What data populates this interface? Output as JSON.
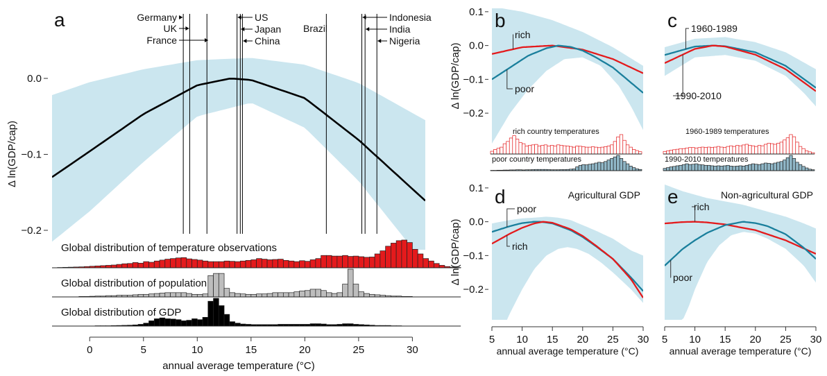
{
  "chart_data": [
    {
      "panel": "a",
      "type": "line",
      "xlabel": "annual average temperature (°C)",
      "ylabel": "Δ ln(GDP/cap)",
      "xlim": [
        -3.5,
        31.2
      ],
      "ylim": [
        -0.22,
        0.075
      ],
      "xticks": [
        0,
        5,
        10,
        15,
        20,
        25,
        30
      ],
      "xtick_labels": [
        "0",
        "5",
        "10",
        "15",
        "20",
        "25",
        "30"
      ],
      "yticks": [
        0.0,
        -0.1,
        -0.2
      ],
      "ytick_labels": [
        "0.0",
        "−0.1",
        "−0.2"
      ],
      "curve": {
        "x": [
          -3.5,
          0,
          5,
          10,
          13.1,
          15,
          20,
          25,
          31.2
        ],
        "y": [
          -0.13,
          -0.096,
          -0.047,
          -0.009,
          0.0,
          -0.002,
          -0.026,
          -0.081,
          -0.161
        ]
      },
      "band_upper": {
        "x": [
          -3.5,
          0,
          5,
          10,
          15,
          20,
          25,
          31.2
        ],
        "y": [
          -0.022,
          -0.005,
          0.012,
          0.024,
          0.027,
          0.018,
          -0.006,
          -0.055
        ]
      },
      "band_lower": {
        "x": [
          -3.5,
          0,
          5,
          10,
          15,
          20,
          25,
          31.2
        ],
        "y": [
          -0.215,
          -0.175,
          -0.11,
          -0.05,
          -0.032,
          -0.065,
          -0.135,
          -0.245
        ]
      },
      "countries": [
        {
          "name": "Germany",
          "temp": 8.7
        },
        {
          "name": "UK",
          "temp": 9.3
        },
        {
          "name": "France",
          "temp": 10.9
        },
        {
          "name": "US",
          "temp": 13.7
        },
        {
          "name": "Japan",
          "temp": 14.0
        },
        {
          "name": "China",
          "temp": 14.2
        },
        {
          "name": "Brazil",
          "temp": 22.0
        },
        {
          "name": "Indonesia",
          "temp": 25.3
        },
        {
          "name": "India",
          "temp": 25.6
        },
        {
          "name": "Nigeria",
          "temp": 26.7
        }
      ],
      "histograms": [
        {
          "name": "Global distribution of temperature observations",
          "color": "#e41a1c",
          "values": [
            0.005,
            0.01,
            0.015,
            0.02,
            0.025,
            0.03,
            0.04,
            0.05,
            0.06,
            0.07,
            0.08,
            0.09,
            0.11,
            0.13,
            0.14,
            0.17,
            0.15,
            0.2,
            0.18,
            0.22,
            0.25,
            0.28,
            0.3,
            0.32,
            0.33,
            0.29,
            0.27,
            0.25,
            0.22,
            0.2,
            0.2,
            0.2,
            0.22,
            0.21,
            0.2,
            0.22,
            0.24,
            0.26,
            0.3,
            0.28,
            0.26,
            0.27,
            0.28,
            0.24,
            0.22,
            0.2,
            0.23,
            0.21,
            0.26,
            0.3,
            0.4,
            0.4,
            0.38,
            0.38,
            0.4,
            0.37,
            0.38,
            0.36,
            0.34,
            0.35,
            0.45,
            0.55,
            0.7,
            0.8,
            0.88,
            0.9,
            0.82,
            0.6,
            0.45,
            0.3,
            0.22,
            0.14,
            0.08,
            0.04,
            0.02,
            0.01
          ]
        },
        {
          "name": "Global distribution of population",
          "color": "#bdbdbd",
          "values": [
            0.0,
            0.0,
            0.0,
            0.005,
            0.005,
            0.01,
            0.01,
            0.015,
            0.02,
            0.02,
            0.03,
            0.03,
            0.04,
            0.04,
            0.04,
            0.05,
            0.06,
            0.06,
            0.07,
            0.08,
            0.09,
            0.1,
            0.1,
            0.1,
            0.1,
            0.08,
            0.06,
            0.06,
            0.07,
            0.5,
            0.55,
            0.55,
            0.2,
            0.1,
            0.08,
            0.07,
            0.06,
            0.06,
            0.07,
            0.07,
            0.08,
            0.1,
            0.1,
            0.1,
            0.1,
            0.12,
            0.14,
            0.15,
            0.18,
            0.18,
            0.15,
            0.1,
            0.08,
            0.1,
            0.3,
            0.65,
            0.3,
            0.12,
            0.08,
            0.06,
            0.05,
            0.04,
            0.03,
            0.02,
            0.02,
            0.01,
            0.01,
            0.0,
            0.0,
            0.0,
            0.0,
            0.0,
            0.0,
            0.0,
            0.0,
            0.0
          ]
        },
        {
          "name": "Global distribution of GDP",
          "color": "#000000",
          "values": [
            0.0,
            0.0,
            0.0,
            0.0,
            0.0,
            0.005,
            0.005,
            0.005,
            0.01,
            0.01,
            0.01,
            0.015,
            0.02,
            0.025,
            0.03,
            0.04,
            0.06,
            0.1,
            0.18,
            0.25,
            0.28,
            0.25,
            0.24,
            0.22,
            0.18,
            0.2,
            0.25,
            0.22,
            0.3,
            0.85,
            0.95,
            0.7,
            0.4,
            0.15,
            0.1,
            0.07,
            0.06,
            0.05,
            0.05,
            0.05,
            0.05,
            0.05,
            0.06,
            0.06,
            0.06,
            0.06,
            0.06,
            0.06,
            0.08,
            0.08,
            0.07,
            0.05,
            0.05,
            0.06,
            0.08,
            0.08,
            0.06,
            0.05,
            0.04,
            0.03,
            0.02,
            0.02,
            0.02,
            0.01,
            0.01,
            0.005,
            0.005,
            0.0,
            0.0,
            0.0,
            0.0,
            0.0,
            0.0,
            0.0,
            0.0,
            0.0
          ]
        }
      ],
      "hist_x_start": -3.5,
      "hist_bin_width": 0.5
    },
    {
      "panel": "b",
      "type": "line",
      "ylabel": "Δ ln(GDP/cap)",
      "xlim": [
        5,
        30
      ],
      "ylim": [
        -0.29,
        0.11
      ],
      "yticks": [
        0.1,
        0.0,
        -0.1,
        -0.2
      ],
      "ytick_labels": [
        "0.1",
        "0.0",
        "−0.1",
        "−0.2"
      ],
      "series": [
        {
          "name": "rich",
          "color": "#e41a1c",
          "x": [
            5,
            10,
            15,
            20,
            25,
            30
          ],
          "y": [
            -0.025,
            -0.005,
            0.0,
            -0.012,
            -0.04,
            -0.082
          ]
        },
        {
          "name": "poor",
          "color": "#1a7f9c",
          "x": [
            5,
            8,
            11,
            14,
            16,
            18,
            20,
            22,
            25,
            28,
            30
          ],
          "y": [
            -0.1,
            -0.065,
            -0.03,
            -0.008,
            0.0,
            -0.004,
            -0.015,
            -0.033,
            -0.065,
            -0.11,
            -0.14
          ]
        }
      ],
      "band_upper": {
        "x": [
          5,
          10,
          15,
          20,
          25,
          30
        ],
        "y": [
          0.115,
          0.1,
          0.075,
          0.04,
          -0.005,
          -0.06
        ]
      },
      "band_lower": {
        "x": [
          5,
          8,
          11,
          14,
          17,
          20,
          23,
          26,
          28,
          30
        ],
        "y": [
          -0.29,
          -0.2,
          -0.13,
          -0.075,
          -0.04,
          -0.035,
          -0.06,
          -0.12,
          -0.18,
          -0.25
        ]
      },
      "histograms": [
        {
          "name": "rich country temperatures",
          "color": "#e41a1c",
          "fill": "#ffffff",
          "values": [
            0.12,
            0.2,
            0.25,
            0.3,
            0.45,
            0.55,
            0.7,
            0.8,
            0.65,
            0.5,
            0.45,
            0.35,
            0.38,
            0.4,
            0.42,
            0.35,
            0.38,
            0.4,
            0.35,
            0.38,
            0.35,
            0.4,
            0.38,
            0.36,
            0.35,
            0.33,
            0.3,
            0.35,
            0.34,
            0.32,
            0.3,
            0.3,
            0.32,
            0.3,
            0.28,
            0.3,
            0.32,
            0.35,
            0.4,
            0.55,
            0.75,
            0.85,
            0.6,
            0.4,
            0.3,
            0.2,
            0.15,
            0.1
          ]
        },
        {
          "name": "poor country temperatures",
          "color": "#222222",
          "fill": "#8fb6c6",
          "values": [
            0.02,
            0.02,
            0.03,
            0.03,
            0.04,
            0.04,
            0.05,
            0.05,
            0.06,
            0.06,
            0.05,
            0.06,
            0.06,
            0.07,
            0.08,
            0.08,
            0.08,
            0.08,
            0.07,
            0.06,
            0.06,
            0.06,
            0.07,
            0.07,
            0.08,
            0.1,
            0.12,
            0.25,
            0.35,
            0.4,
            0.38,
            0.42,
            0.45,
            0.5,
            0.55,
            0.52,
            0.6,
            0.7,
            0.8,
            0.9,
            1.0,
            0.8,
            0.6,
            0.45,
            0.3,
            0.2,
            0.12,
            0.08
          ]
        }
      ]
    },
    {
      "panel": "c",
      "type": "line",
      "xlim": [
        5,
        30
      ],
      "ylim": [
        -0.29,
        0.11
      ],
      "series": [
        {
          "name": "1960-1989",
          "color": "#1a7f9c",
          "x": [
            5,
            10,
            13,
            15,
            20,
            25,
            30
          ],
          "y": [
            -0.028,
            -0.003,
            0.0,
            -0.002,
            -0.02,
            -0.06,
            -0.125
          ]
        },
        {
          "name": "1990-2010",
          "color": "#e41a1c",
          "x": [
            5,
            10,
            13,
            15,
            20,
            25,
            30
          ],
          "y": [
            -0.052,
            -0.01,
            0.0,
            -0.003,
            -0.027,
            -0.07,
            -0.135
          ]
        }
      ],
      "band_upper": {
        "x": [
          5,
          10,
          15,
          20,
          25,
          30
        ],
        "y": [
          -0.005,
          0.02,
          0.025,
          0.01,
          -0.02,
          -0.07
        ]
      },
      "band_lower": {
        "x": [
          5,
          10,
          15,
          20,
          25,
          28,
          30
        ],
        "y": [
          -0.09,
          -0.035,
          -0.028,
          -0.045,
          -0.09,
          -0.14,
          -0.18
        ]
      },
      "histograms": [
        {
          "name": "1960-1989 temperatures",
          "color": "#e41a1c",
          "fill": "#ffffff",
          "values": [
            0.12,
            0.15,
            0.18,
            0.2,
            0.22,
            0.25,
            0.25,
            0.28,
            0.3,
            0.3,
            0.28,
            0.3,
            0.32,
            0.3,
            0.32,
            0.3,
            0.32,
            0.35,
            0.32,
            0.3,
            0.35,
            0.38,
            0.35,
            0.4,
            0.38,
            0.42,
            0.45,
            0.4,
            0.38,
            0.35,
            0.4,
            0.38,
            0.45,
            0.5,
            0.48,
            0.45,
            0.5,
            0.55,
            0.65,
            0.75,
            0.9,
            0.8,
            0.55,
            0.35,
            0.25,
            0.15,
            0.1,
            0.06
          ]
        },
        {
          "name": "1990-2010 temperatures",
          "color": "#222222",
          "fill": "#8fb6c6",
          "values": [
            0.15,
            0.2,
            0.25,
            0.28,
            0.32,
            0.35,
            0.4,
            0.45,
            0.4,
            0.42,
            0.45,
            0.4,
            0.38,
            0.35,
            0.35,
            0.32,
            0.3,
            0.32,
            0.3,
            0.32,
            0.35,
            0.3,
            0.28,
            0.3,
            0.32,
            0.3,
            0.35,
            0.4,
            0.45,
            0.42,
            0.4,
            0.45,
            0.5,
            0.48,
            0.45,
            0.5,
            0.55,
            0.6,
            0.7,
            0.85,
            1.0,
            0.8,
            0.55,
            0.4,
            0.28,
            0.18,
            0.1,
            0.06
          ]
        }
      ]
    },
    {
      "panel": "d",
      "type": "line",
      "title": "Agricultural GDP",
      "xlabel": "annual average temperature (°C)",
      "ylabel": "Δ ln(GDP/cap)",
      "xlim": [
        5,
        30
      ],
      "ylim": [
        -0.29,
        0.11
      ],
      "xticks": [
        5,
        10,
        15,
        20,
        25,
        30
      ],
      "xtick_labels": [
        "5",
        "10",
        "15",
        "20",
        "25",
        "30"
      ],
      "yticks": [
        0.1,
        0.0,
        -0.1,
        -0.2
      ],
      "ytick_labels": [
        "0.1",
        "0.0",
        "−0.1",
        "−0.2"
      ],
      "series": [
        {
          "name": "poor",
          "color": "#1a7f9c",
          "x": [
            5,
            8,
            10,
            12,
            13,
            15,
            18,
            20,
            22,
            25,
            28,
            30
          ],
          "y": [
            -0.03,
            -0.013,
            -0.004,
            0.0,
            0.0,
            -0.005,
            -0.025,
            -0.045,
            -0.07,
            -0.11,
            -0.165,
            -0.205
          ]
        },
        {
          "name": "rich",
          "color": "#e41a1c",
          "x": [
            5,
            8,
            10,
            12,
            13.5,
            15,
            18,
            20,
            22,
            25,
            28,
            30
          ],
          "y": [
            -0.065,
            -0.035,
            -0.018,
            -0.005,
            0.0,
            -0.003,
            -0.022,
            -0.042,
            -0.068,
            -0.11,
            -0.17,
            -0.225
          ]
        }
      ],
      "band_upper": {
        "x": [
          5,
          8,
          10,
          12,
          14,
          16,
          18,
          20,
          22,
          25,
          28,
          30
        ],
        "y": [
          -0.005,
          0.005,
          0.01,
          0.012,
          0.015,
          0.012,
          0.005,
          -0.01,
          -0.025,
          -0.05,
          -0.085,
          -0.1
        ]
      },
      "band_lower": {
        "x": [
          5,
          7.5,
          8,
          10,
          12,
          14,
          16,
          17.5,
          19,
          21,
          23,
          25,
          28,
          30
        ],
        "y": [
          -0.29,
          -0.29,
          -0.27,
          -0.2,
          -0.14,
          -0.1,
          -0.08,
          -0.075,
          -0.08,
          -0.095,
          -0.12,
          -0.15,
          -0.2,
          -0.24
        ]
      }
    },
    {
      "panel": "e",
      "type": "line",
      "title": "Non-agricultural GDP",
      "xlabel": "annual average temperature (°C)",
      "xlim": [
        5,
        30
      ],
      "ylim": [
        -0.29,
        0.11
      ],
      "xticks": [
        5,
        10,
        15,
        20,
        25,
        30
      ],
      "xtick_labels": [
        "5",
        "10",
        "15",
        "20",
        "25",
        "30"
      ],
      "series": [
        {
          "name": "rich",
          "color": "#e41a1c",
          "x": [
            5,
            8,
            10,
            12,
            15,
            20,
            25,
            30
          ],
          "y": [
            -0.005,
            -0.001,
            0.0,
            -0.002,
            -0.008,
            -0.025,
            -0.055,
            -0.095
          ]
        },
        {
          "name": "poor",
          "color": "#1a7f9c",
          "x": [
            5,
            8,
            10,
            12,
            15,
            18,
            20,
            22,
            25,
            28,
            30
          ],
          "y": [
            -0.13,
            -0.08,
            -0.055,
            -0.033,
            -0.01,
            0.0,
            -0.004,
            -0.013,
            -0.037,
            -0.077,
            -0.11
          ]
        }
      ],
      "band_upper": {
        "x": [
          5,
          8,
          10,
          12,
          15,
          18,
          20,
          22,
          25,
          28,
          30
        ],
        "y": [
          0.11,
          0.09,
          0.08,
          0.07,
          0.06,
          0.05,
          0.04,
          0.03,
          0.015,
          -0.005,
          -0.02
        ]
      },
      "band_lower": {
        "x": [
          5,
          8,
          9,
          10,
          12,
          14,
          16,
          18,
          20,
          22,
          25,
          28,
          30
        ],
        "y": [
          -0.29,
          -0.29,
          -0.25,
          -0.2,
          -0.12,
          -0.07,
          -0.04,
          -0.03,
          -0.035,
          -0.05,
          -0.08,
          -0.13,
          -0.18
        ]
      }
    }
  ]
}
